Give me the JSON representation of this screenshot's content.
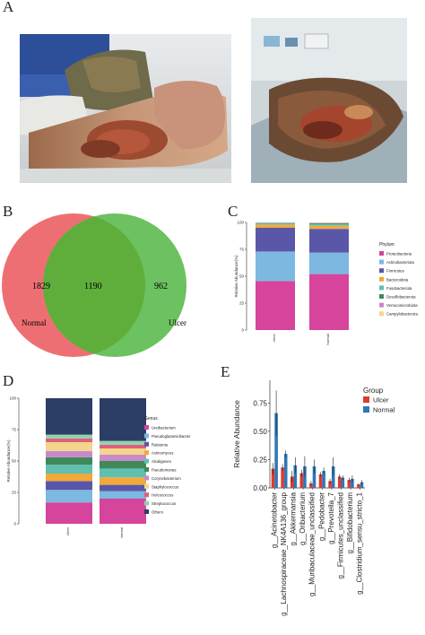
{
  "panels": {
    "a": "A",
    "b": "B",
    "c": "C",
    "d": "D",
    "e": "E"
  },
  "venn": {
    "left_label": "Normal",
    "right_label": "Ulcer",
    "left_only": "1829",
    "shared": "1190",
    "right_only": "962",
    "left_color": "#ee6f73",
    "right_color": "#6cc160",
    "overlap_color": "#5fae3c"
  },
  "chart_data": [
    {
      "id": "C",
      "type": "bar",
      "stacked": true,
      "categories": [
        "Ulcer",
        "Normal"
      ],
      "ylabel": "Relative Abundance(%)",
      "yticks": [
        "0",
        "25",
        "50",
        "75",
        "100"
      ],
      "ylim": [
        0,
        100
      ],
      "legend_title": "Phylum",
      "legend_position": "right",
      "series": [
        {
          "name": "Proteobacteria",
          "color": "#d6449b",
          "values": [
            45.5,
            52
          ]
        },
        {
          "name": "Actinobacteriota",
          "color": "#7cb8e0",
          "values": [
            27.5,
            20
          ]
        },
        {
          "name": "Firmicutes",
          "color": "#5a56a8",
          "values": [
            22,
            22
          ]
        },
        {
          "name": "Bacteroidota",
          "color": "#f2a93b",
          "values": [
            3,
            3
          ]
        },
        {
          "name": "Fusobacteriota",
          "color": "#5fc0b0",
          "values": [
            1,
            1.5
          ]
        },
        {
          "name": "Desulfobacterota",
          "color": "#3f8a5a",
          "values": [
            0.5,
            0.7
          ]
        },
        {
          "name": "Verrucomicrobiota",
          "color": "#c98ac9",
          "values": [
            0.3,
            0.5
          ]
        },
        {
          "name": "Campylobacterota",
          "color": "#f4d58d",
          "values": [
            0.2,
            0.3
          ]
        }
      ]
    },
    {
      "id": "D",
      "type": "bar",
      "stacked": true,
      "categories": [
        "Ulcer",
        "Normal"
      ],
      "ylabel": "Relative Abundance(%)",
      "yticks": [
        "0",
        "25",
        "50",
        "75",
        "100"
      ],
      "ylim": [
        0,
        100
      ],
      "legend_title": "Genus",
      "legend_position": "right",
      "series": [
        {
          "name": "Ureibacterium",
          "color": "#d6449b",
          "values": [
            17,
            20
          ]
        },
        {
          "name": "Pseudoglutamicibacter",
          "color": "#7cb8e0",
          "values": [
            10,
            6
          ]
        },
        {
          "name": "Ralstonia",
          "color": "#5a56a8",
          "values": [
            7,
            5
          ]
        },
        {
          "name": "Actinomyces",
          "color": "#f2a93b",
          "values": [
            6,
            6
          ]
        },
        {
          "name": "Alcaligenes",
          "color": "#5fc0b0",
          "values": [
            7,
            7
          ]
        },
        {
          "name": "Pseudomonas",
          "color": "#3f8a5a",
          "values": [
            6,
            6
          ]
        },
        {
          "name": "Corynebacterium",
          "color": "#c98ac9",
          "values": [
            5,
            5
          ]
        },
        {
          "name": "Staphylococcus",
          "color": "#f4d58d",
          "values": [
            7,
            5
          ]
        },
        {
          "name": "Helcococcus",
          "color": "#e0607a",
          "values": [
            3,
            3
          ]
        },
        {
          "name": "Streptococcus",
          "color": "#8fd3b0",
          "values": [
            3,
            3
          ]
        },
        {
          "name": "Others",
          "color": "#2c3e66",
          "values": [
            29,
            34
          ]
        }
      ]
    },
    {
      "id": "E",
      "type": "bar",
      "grouped": true,
      "ylabel": "Relative Abundance",
      "yticks": [
        "0.00",
        "0.25",
        "0.50",
        "0.75"
      ],
      "ylim": [
        0,
        0.95
      ],
      "legend_title": "Group",
      "legend_position": "top-right",
      "categories": [
        "g__Acinetobacter",
        "g__Lachnospiraceae_NK4A136_group",
        "g__Akkermansia",
        "g__Oribacterium",
        "g__Muribaculaceae_unclassified",
        "g__Pedobacter",
        "g__Prevotella_7",
        "g__Firmicutes_unclassified",
        "g__Bifidobacterium",
        "g__Clostridium_sensu_stricto_1"
      ],
      "series": [
        {
          "name": "Ulcer",
          "color": "#e03a2f",
          "values": [
            0.17,
            0.18,
            0.1,
            0.13,
            0.04,
            0.12,
            0.06,
            0.1,
            0.07,
            0.03
          ],
          "errors": [
            0.05,
            0.03,
            0.05,
            0.03,
            0.02,
            0.02,
            0.02,
            0.02,
            0.02,
            0.01
          ]
        },
        {
          "name": "Normal",
          "color": "#2e78b7",
          "values": [
            0.66,
            0.3,
            0.2,
            0.19,
            0.19,
            0.15,
            0.19,
            0.09,
            0.08,
            0.05
          ],
          "errors": [
            0.2,
            0.03,
            0.07,
            0.09,
            0.06,
            0.03,
            0.08,
            0.02,
            0.03,
            0.02
          ]
        }
      ]
    }
  ]
}
